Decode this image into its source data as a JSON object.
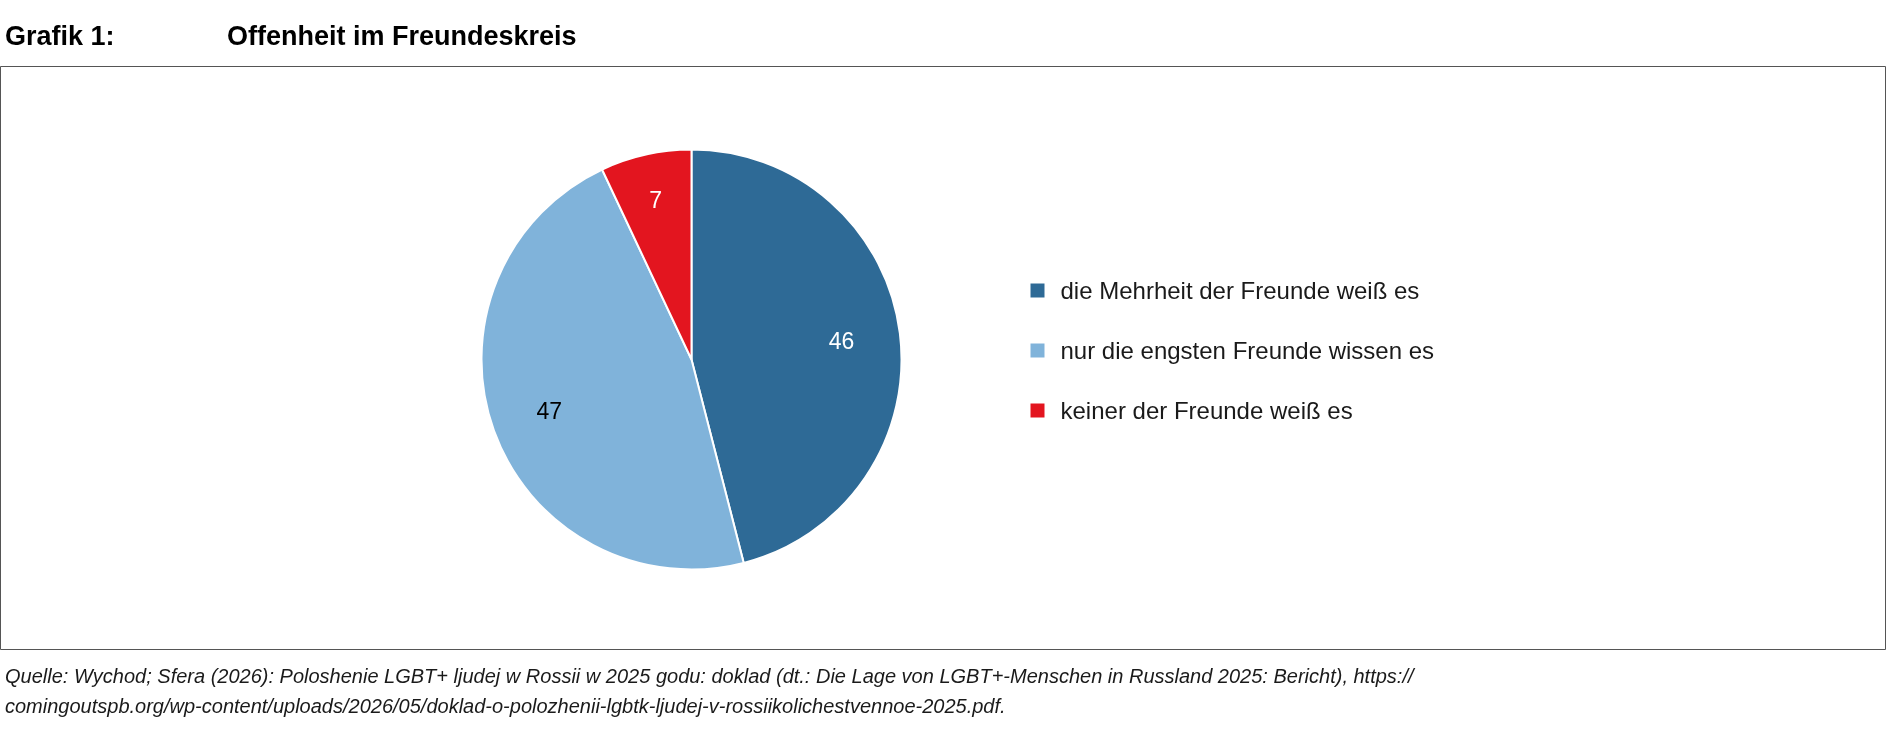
{
  "chart_data": {
    "type": "pie",
    "title": "Offenheit im Freundeskreis",
    "categories": [
      "die Mehrheit der Freunde weiß es",
      "nur die engsten Freunde wissen es",
      "keiner der Freunde weiß es"
    ],
    "values": [
      46,
      47,
      7
    ],
    "colors": [
      "#2e6a96",
      "#80b3da",
      "#e3151f"
    ],
    "data_labels": true,
    "legend": "right",
    "annotations": [
      "Grafik 1:",
      "Quelle: Wychod; Sfera (2026): Poloshenie LGBT+ ljudej w Rossii w 2025 godu: doklad (dt.: Die Lage von LGBT+-Menschen in Russland 2025: Bericht), https://",
      "comingoutspb.org/wp-content/uploads/2026/05/doklad-o-polozhenii-lgbtk-ljudej-v-rossiikolichestvennoe-2025.pdf."
    ]
  }
}
